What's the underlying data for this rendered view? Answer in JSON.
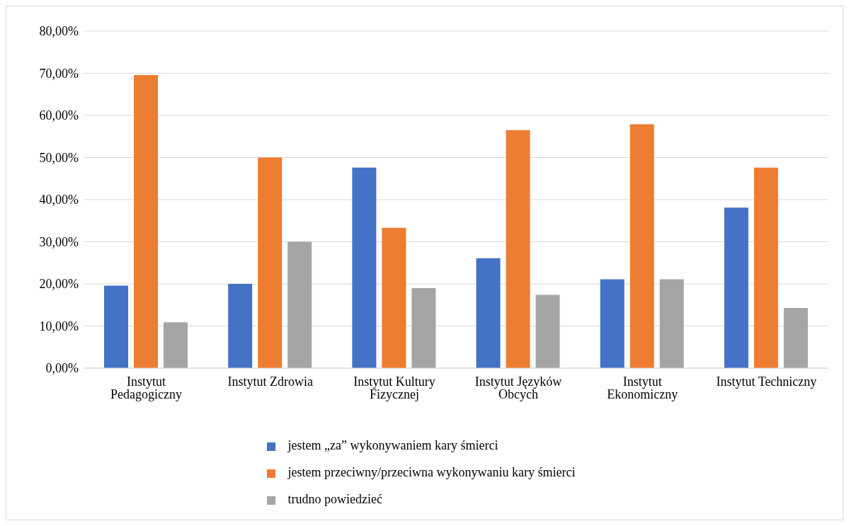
{
  "chart_data": {
    "type": "bar",
    "categories": [
      "Instytut Pedagogiczny",
      "Instytut Zdrowia",
      "Instytut Kultury Fizycznej",
      "Instytut Języków Obcych",
      "Instytut Ekonomiczny",
      "Instytut Techniczny"
    ],
    "series": [
      {
        "name": "jestem „za” wykonywaniem kary śmierci",
        "color": "#4472c4",
        "values": [
          19.6,
          20,
          47.6,
          26.1,
          21.1,
          38.1
        ]
      },
      {
        "name": "jestem przeciwny/przeciwna wykonywaniu kary śmierci",
        "color": "#ed7d31",
        "values": [
          69.6,
          50,
          33.3,
          56.5,
          57.9,
          47.6
        ]
      },
      {
        "name": "trudno powiedzieć",
        "color": "#a5a5a5",
        "values": [
          10.9,
          30,
          19.0,
          17.4,
          21.1,
          14.3
        ]
      }
    ],
    "ylim": [
      0,
      80
    ],
    "yticks": [
      {
        "value": 0,
        "label": "0,00%"
      },
      {
        "value": 10,
        "label": "10,00%"
      },
      {
        "value": 20,
        "label": "20,00%"
      },
      {
        "value": 30,
        "label": "30,00%"
      },
      {
        "value": 40,
        "label": "40,00%"
      },
      {
        "value": 50,
        "label": "50,00%"
      },
      {
        "value": 60,
        "label": "60,00%"
      },
      {
        "value": 70,
        "label": "70,00%"
      },
      {
        "value": 80,
        "label": "80,00%"
      }
    ],
    "grid": "y",
    "legend": "bottom"
  }
}
